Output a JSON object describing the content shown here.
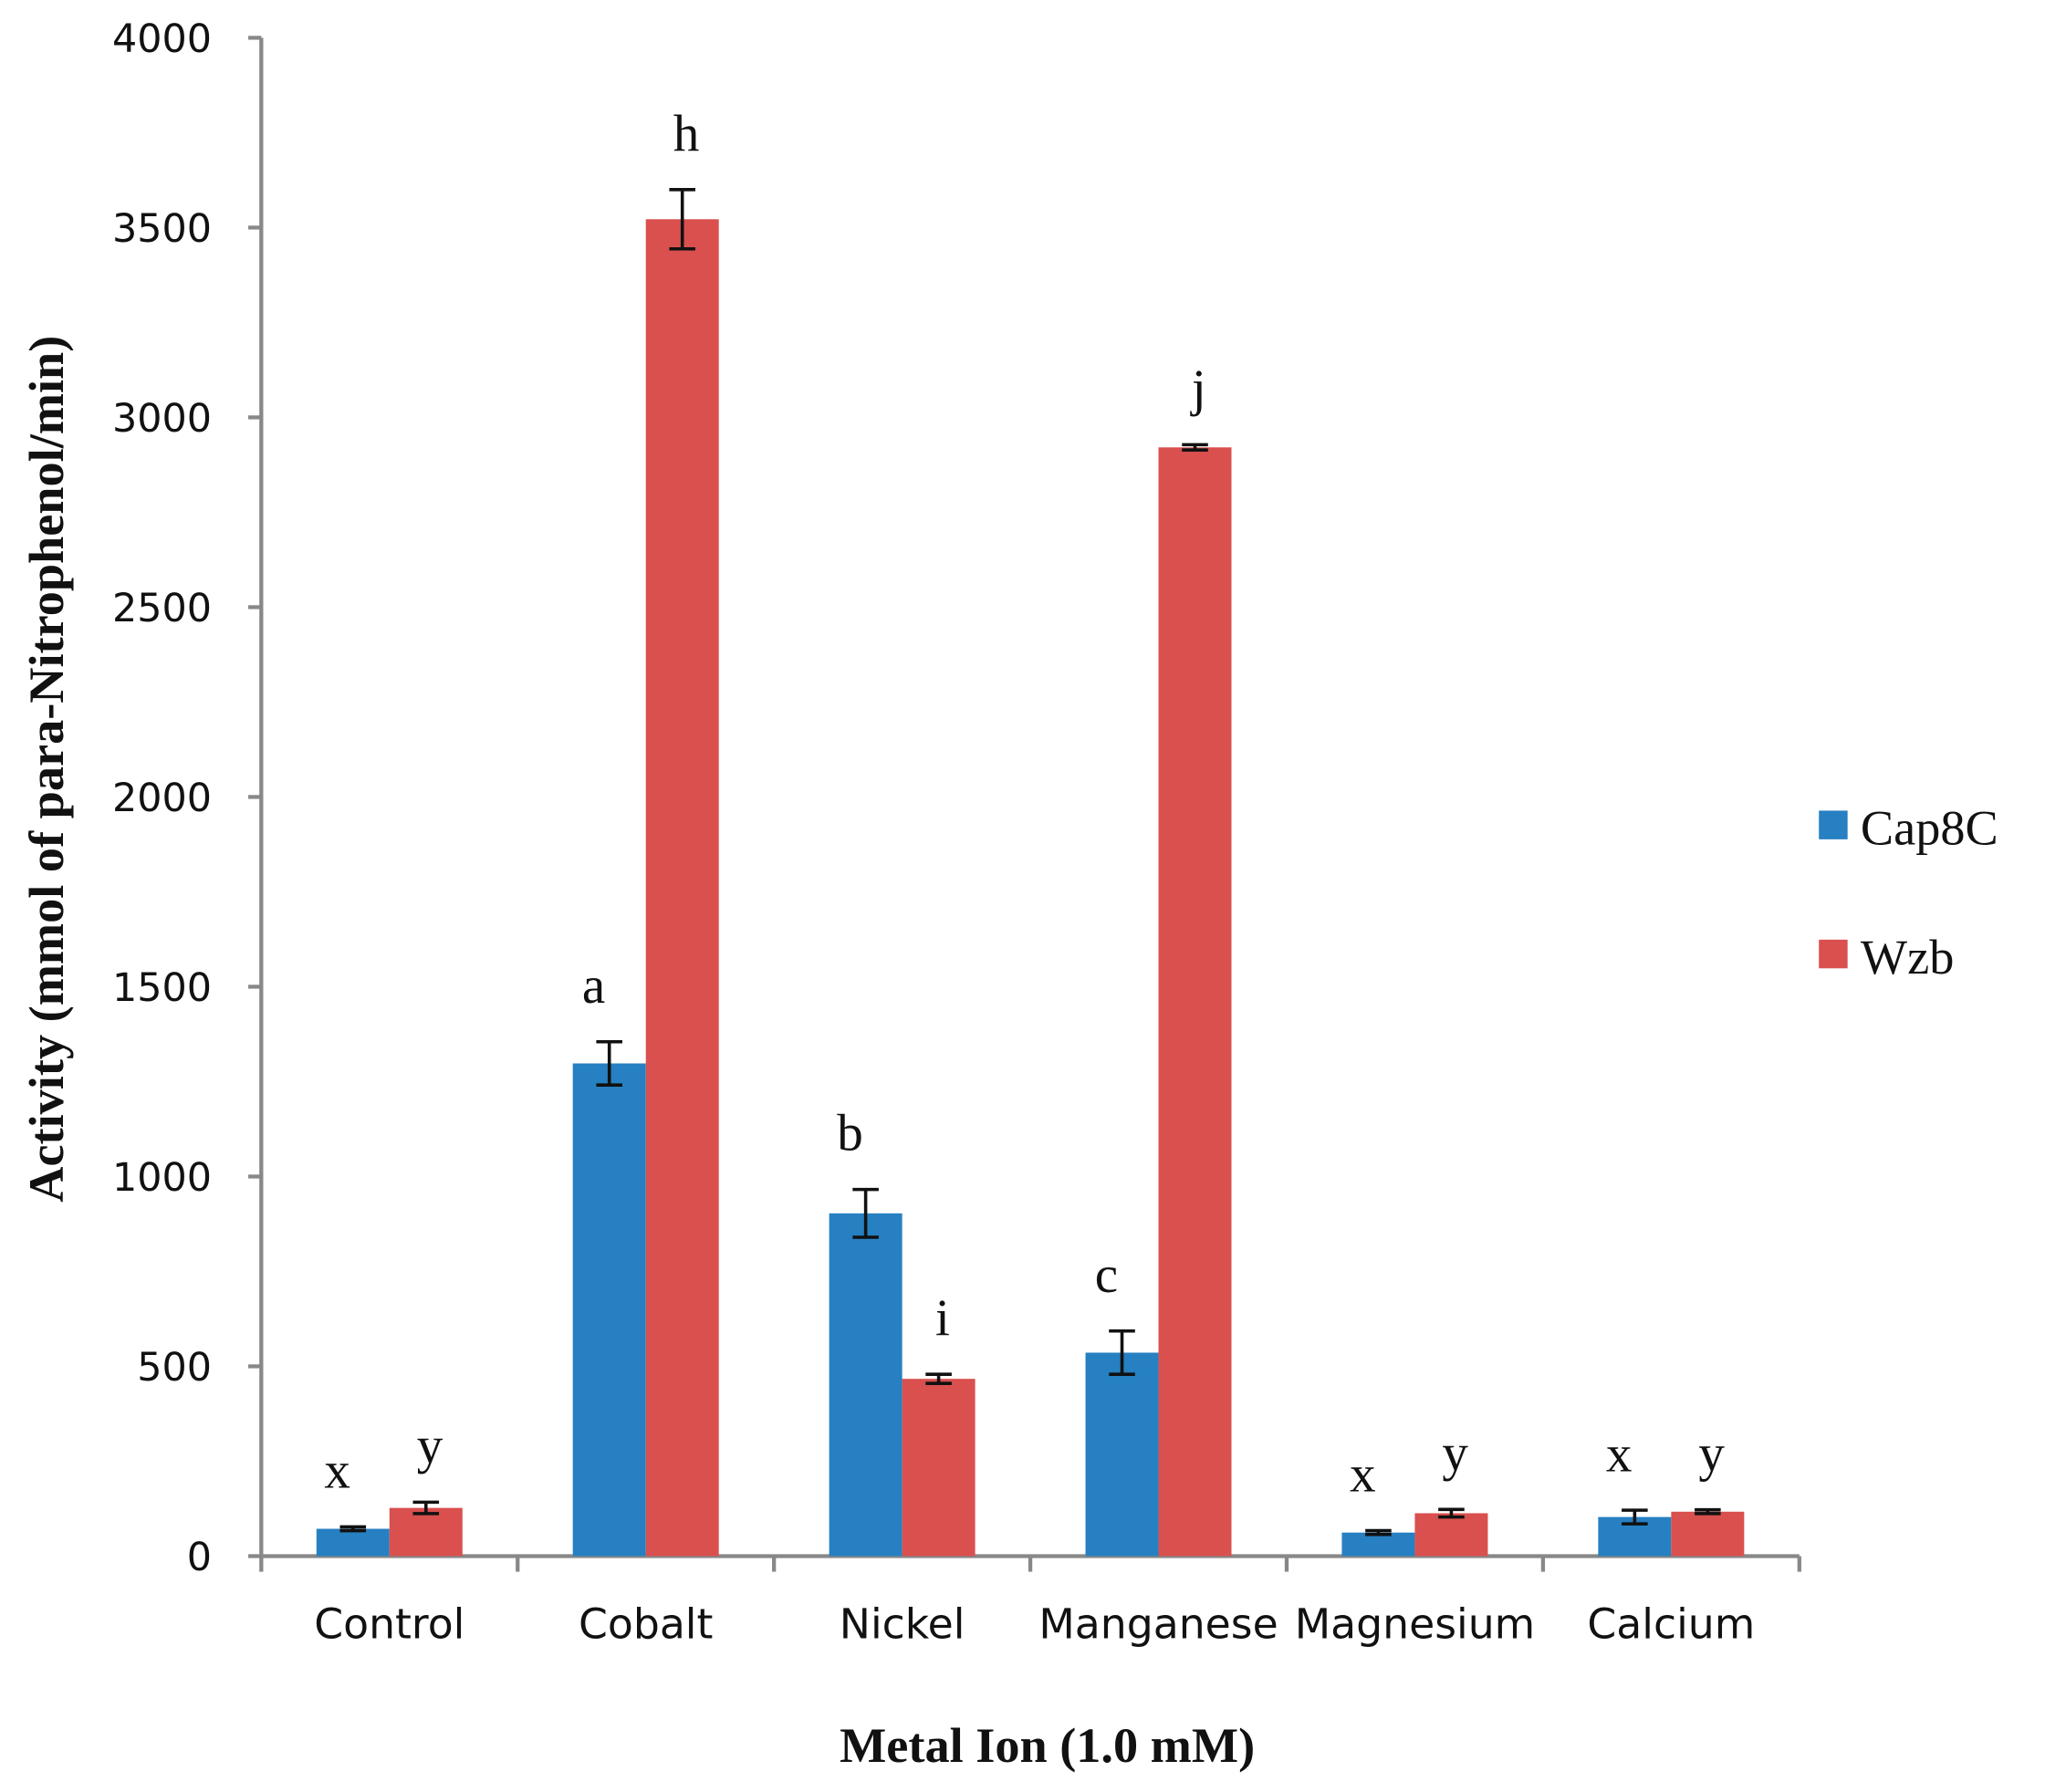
{
  "chart_data": {
    "type": "bar",
    "title": "",
    "xlabel": "Metal Ion (1.0 mM)",
    "ylabel": "Activity (mmol of para-Nitrophenol/min)",
    "ylim": [
      0,
      4000
    ],
    "yticks": [
      "0",
      "500",
      "1000",
      "1500",
      "2000",
      "2500",
      "3000",
      "3500",
      "4000"
    ],
    "grid": false,
    "legend_position": "right",
    "categories": [
      "Control",
      "Cobalt",
      "Nickel",
      "Manganese",
      "Magnesium",
      "Calcium"
    ],
    "series": [
      {
        "name": "Cap8C",
        "color": "#2680C2",
        "values": [
          72,
          1298,
          903,
          536,
          62,
          103
        ],
        "errors": [
          5,
          57,
          63,
          57,
          5,
          18
        ],
        "labels": [
          "x",
          "a",
          "b",
          "c",
          "x",
          "x"
        ]
      },
      {
        "name": "Wzb",
        "color": "#D9504E",
        "values": [
          127,
          3522,
          467,
          2921,
          113,
          117
        ],
        "errors": [
          15,
          78,
          12,
          7,
          10,
          5
        ],
        "labels": [
          "y",
          "h",
          "i",
          "j",
          "y",
          "y"
        ]
      }
    ]
  }
}
